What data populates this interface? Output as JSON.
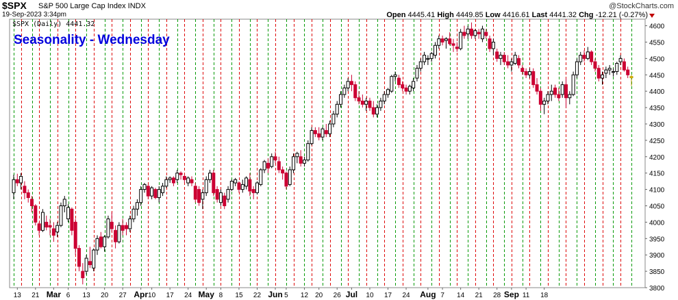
{
  "header": {
    "symbol": "$SPX",
    "company": "S&P 500 Large Cap Index INDX",
    "datetime": "19-Sep-2023 3:34pm",
    "brand": "@StockCharts.com",
    "open_label": "Open",
    "open": "4445.41",
    "high_label": "High",
    "high": "4449.85",
    "low_label": "Low",
    "low": "4416.61",
    "last_label": "Last",
    "last": "4441.32",
    "chg_label": "Chg",
    "chg": "-12.21 (-0.27%)"
  },
  "colors": {
    "up": "#000000",
    "down": "#cc0033",
    "today": "#ffd400",
    "green_line": "#009900",
    "red_line": "#dd0000",
    "title": "#0000dd"
  },
  "chart_data": {
    "type": "candlestick",
    "title": "Seasonality - Wednesday",
    "legend": "$SPX (Daily) 4441.32",
    "ylim": [
      3800,
      4620
    ],
    "y_ticks": [
      3800,
      3850,
      3900,
      3950,
      4000,
      4050,
      4100,
      4150,
      4200,
      4250,
      4300,
      4350,
      4400,
      4450,
      4500,
      4550,
      4600
    ],
    "grid": "vertical weekly dashed lines: green = Monday, red = Wednesday",
    "x_ticks": [
      {
        "i": 1,
        "label": "13"
      },
      {
        "i": 6,
        "label": "21"
      },
      {
        "i": 11,
        "label": "Mar",
        "bold": true
      },
      {
        "i": 15,
        "label": "6"
      },
      {
        "i": 20,
        "label": "13"
      },
      {
        "i": 25,
        "label": "20"
      },
      {
        "i": 30,
        "label": "27"
      },
      {
        "i": 35,
        "label": "Apr",
        "bold": true
      },
      {
        "i": 38,
        "label": "10"
      },
      {
        "i": 43,
        "label": "17"
      },
      {
        "i": 48,
        "label": "24"
      },
      {
        "i": 53,
        "label": "May",
        "bold": true
      },
      {
        "i": 57,
        "label": "8"
      },
      {
        "i": 62,
        "label": "15"
      },
      {
        "i": 67,
        "label": "22"
      },
      {
        "i": 72,
        "label": "Jun",
        "bold": true
      },
      {
        "i": 75,
        "label": "5"
      },
      {
        "i": 80,
        "label": "12"
      },
      {
        "i": 84,
        "label": "20"
      },
      {
        "i": 89,
        "label": "26"
      },
      {
        "i": 93,
        "label": "Jul",
        "bold": true
      },
      {
        "i": 98,
        "label": "10"
      },
      {
        "i": 103,
        "label": "17"
      },
      {
        "i": 108,
        "label": "24"
      },
      {
        "i": 114,
        "label": "Aug",
        "bold": true
      },
      {
        "i": 118,
        "label": "7"
      },
      {
        "i": 123,
        "label": "14"
      },
      {
        "i": 128,
        "label": "21"
      },
      {
        "i": 133,
        "label": "28"
      },
      {
        "i": 137,
        "label": "Sep",
        "bold": true
      },
      {
        "i": 141,
        "label": "11"
      },
      {
        "i": 146,
        "label": "18"
      }
    ],
    "candles": [
      [
        4090,
        4145,
        4070,
        4130
      ],
      [
        4130,
        4148,
        4110,
        4120
      ],
      [
        4120,
        4150,
        4100,
        4140
      ],
      [
        4110,
        4125,
        4070,
        4090
      ],
      [
        4090,
        4100,
        4060,
        4075
      ],
      [
        4070,
        4080,
        4030,
        4050
      ],
      [
        4050,
        4055,
        3990,
        4000
      ],
      [
        3995,
        4000,
        3960,
        3975
      ],
      [
        3975,
        4040,
        3970,
        4030
      ],
      [
        4000,
        4020,
        3975,
        3985
      ],
      [
        3990,
        4010,
        3960,
        3985
      ],
      [
        3980,
        4000,
        3940,
        3960
      ],
      [
        3970,
        4000,
        3955,
        3990
      ],
      [
        3990,
        4060,
        3985,
        4050
      ],
      [
        4050,
        4080,
        4030,
        4070
      ],
      [
        4010,
        4055,
        4000,
        4045
      ],
      [
        4040,
        4045,
        3960,
        3975
      ],
      [
        4000,
        4010,
        3900,
        3920
      ],
      [
        3920,
        3930,
        3850,
        3865
      ],
      [
        3850,
        3875,
        3810,
        3830
      ],
      [
        3850,
        3900,
        3840,
        3890
      ],
      [
        3880,
        3925,
        3860,
        3870
      ],
      [
        3860,
        3920,
        3850,
        3915
      ],
      [
        3915,
        3960,
        3900,
        3950
      ],
      [
        3955,
        3970,
        3920,
        3925
      ],
      [
        3925,
        3960,
        3910,
        3955
      ],
      [
        3955,
        4020,
        3950,
        4010
      ],
      [
        4000,
        4030,
        3970,
        3980
      ],
      [
        3975,
        3990,
        3920,
        3940
      ],
      [
        3940,
        4000,
        3935,
        3990
      ],
      [
        3990,
        4010,
        3960,
        3975
      ],
      [
        3990,
        4000,
        3960,
        3980
      ],
      [
        3980,
        4020,
        3970,
        4010
      ],
      [
        4010,
        4050,
        4000,
        4040
      ],
      [
        4040,
        4070,
        4020,
        4060
      ],
      [
        4060,
        4110,
        4050,
        4100
      ],
      [
        4100,
        4120,
        4090,
        4115
      ],
      [
        4110,
        4115,
        4070,
        4080
      ],
      [
        4080,
        4110,
        4070,
        4105
      ],
      [
        4100,
        4105,
        4070,
        4075
      ],
      [
        4075,
        4110,
        4060,
        4100
      ],
      [
        4090,
        4120,
        4080,
        4110
      ],
      [
        4110,
        4140,
        4105,
        4130
      ],
      [
        4130,
        4140,
        4120,
        4135
      ],
      [
        4135,
        4140,
        4110,
        4120
      ],
      [
        4130,
        4160,
        4120,
        4150
      ],
      [
        4150,
        4155,
        4130,
        4145
      ],
      [
        4140,
        4145,
        4120,
        4130
      ],
      [
        4120,
        4140,
        4110,
        4135
      ],
      [
        4130,
        4140,
        4110,
        4120
      ],
      [
        4110,
        4120,
        4060,
        4070
      ],
      [
        4100,
        4110,
        4050,
        4060
      ],
      [
        4070,
        4100,
        4040,
        4090
      ],
      [
        4090,
        4140,
        4080,
        4130
      ],
      [
        4130,
        4160,
        4120,
        4150
      ],
      [
        4150,
        4160,
        4080,
        4090
      ],
      [
        4100,
        4110,
        4060,
        4070
      ],
      [
        4060,
        4100,
        4050,
        4090
      ],
      [
        4080,
        4090,
        4040,
        4050
      ],
      [
        4070,
        4110,
        4060,
        4100
      ],
      [
        4100,
        4130,
        4095,
        4125
      ],
      [
        4120,
        4135,
        4110,
        4130
      ],
      [
        4120,
        4125,
        4090,
        4100
      ],
      [
        4100,
        4130,
        4090,
        4115
      ],
      [
        4110,
        4140,
        4100,
        4135
      ],
      [
        4130,
        4150,
        4080,
        4095
      ],
      [
        4100,
        4110,
        4070,
        4090
      ],
      [
        4090,
        4125,
        4085,
        4120
      ],
      [
        4115,
        4165,
        4110,
        4160
      ],
      [
        4160,
        4190,
        4150,
        4185
      ],
      [
        4180,
        4195,
        4150,
        4165
      ],
      [
        4170,
        4210,
        4165,
        4200
      ],
      [
        4200,
        4215,
        4180,
        4190
      ],
      [
        4185,
        4200,
        4150,
        4160
      ],
      [
        4160,
        4170,
        4130,
        4150
      ],
      [
        4150,
        4155,
        4100,
        4110
      ],
      [
        4115,
        4170,
        4110,
        4160
      ],
      [
        4160,
        4210,
        4150,
        4200
      ],
      [
        4200,
        4215,
        4180,
        4210
      ],
      [
        4200,
        4220,
        4170,
        4180
      ],
      [
        4180,
        4200,
        4170,
        4190
      ],
      [
        4190,
        4250,
        4185,
        4240
      ],
      [
        4240,
        4290,
        4235,
        4280
      ],
      [
        4280,
        4290,
        4260,
        4270
      ],
      [
        4270,
        4290,
        4250,
        4260
      ],
      [
        4260,
        4290,
        4250,
        4285
      ],
      [
        4280,
        4300,
        4260,
        4270
      ],
      [
        4270,
        4310,
        4260,
        4300
      ],
      [
        4300,
        4340,
        4290,
        4330
      ],
      [
        4330,
        4370,
        4320,
        4360
      ],
      [
        4360,
        4400,
        4350,
        4390
      ],
      [
        4390,
        4420,
        4380,
        4410
      ],
      [
        4410,
        4440,
        4400,
        4430
      ],
      [
        4430,
        4450,
        4400,
        4420
      ],
      [
        4420,
        4430,
        4370,
        4380
      ],
      [
        4380,
        4400,
        4360,
        4370
      ],
      [
        4370,
        4390,
        4350,
        4360
      ],
      [
        4360,
        4380,
        4340,
        4370
      ],
      [
        4370,
        4380,
        4340,
        4350
      ],
      [
        4350,
        4370,
        4320,
        4330
      ],
      [
        4330,
        4360,
        4320,
        4350
      ],
      [
        4350,
        4380,
        4340,
        4370
      ],
      [
        4370,
        4400,
        4360,
        4390
      ],
      [
        4390,
        4410,
        4380,
        4405
      ],
      [
        4400,
        4450,
        4395,
        4445
      ],
      [
        4445,
        4460,
        4430,
        4450
      ],
      [
        4440,
        4450,
        4410,
        4420
      ],
      [
        4420,
        4430,
        4400,
        4410
      ],
      [
        4410,
        4420,
        4390,
        4400
      ],
      [
        4400,
        4420,
        4390,
        4415
      ],
      [
        4410,
        4440,
        4400,
        4430
      ],
      [
        4440,
        4480,
        4430,
        4470
      ],
      [
        4470,
        4500,
        4460,
        4490
      ],
      [
        4490,
        4520,
        4480,
        4510
      ],
      [
        4500,
        4510,
        4480,
        4500
      ],
      [
        4500,
        4520,
        4490,
        4515
      ],
      [
        4510,
        4550,
        4500,
        4540
      ],
      [
        4540,
        4570,
        4530,
        4560
      ],
      [
        4560,
        4570,
        4540,
        4550
      ],
      [
        4555,
        4565,
        4530,
        4560
      ],
      [
        4560,
        4580,
        4540,
        4545
      ],
      [
        4545,
        4560,
        4520,
        4540
      ],
      [
        4535,
        4550,
        4520,
        4530
      ],
      [
        4530,
        4590,
        4525,
        4580
      ],
      [
        4580,
        4600,
        4560,
        4570
      ],
      [
        4575,
        4600,
        4560,
        4590
      ],
      [
        4590,
        4610,
        4560,
        4570
      ],
      [
        4570,
        4590,
        4560,
        4585
      ],
      [
        4580,
        4590,
        4560,
        4575
      ],
      [
        4560,
        4600,
        4550,
        4590
      ],
      [
        4580,
        4590,
        4560,
        4570
      ],
      [
        4560,
        4570,
        4520,
        4530
      ],
      [
        4530,
        4560,
        4510,
        4550
      ],
      [
        4520,
        4530,
        4490,
        4500
      ],
      [
        4500,
        4520,
        4480,
        4510
      ],
      [
        4510,
        4520,
        4480,
        4490
      ],
      [
        4490,
        4510,
        4470,
        4480
      ],
      [
        4480,
        4500,
        4460,
        4490
      ],
      [
        4485,
        4520,
        4480,
        4510
      ],
      [
        4500,
        4510,
        4470,
        4480
      ],
      [
        4470,
        4480,
        4450,
        4460
      ],
      [
        4460,
        4470,
        4440,
        4450
      ],
      [
        4450,
        4470,
        4440,
        4460
      ],
      [
        4460,
        4470,
        4410,
        4420
      ],
      [
        4420,
        4440,
        4390,
        4400
      ],
      [
        4400,
        4410,
        4340,
        4360
      ],
      [
        4360,
        4380,
        4330,
        4370
      ],
      [
        4370,
        4400,
        4360,
        4390
      ],
      [
        4390,
        4420,
        4370,
        4400
      ],
      [
        4410,
        4420,
        4380,
        4390
      ],
      [
        4390,
        4410,
        4370,
        4380
      ],
      [
        4390,
        4430,
        4380,
        4420
      ],
      [
        4420,
        4440,
        4350,
        4380
      ],
      [
        4380,
        4400,
        4360,
        4390
      ],
      [
        4390,
        4460,
        4385,
        4450
      ],
      [
        4450,
        4500,
        4440,
        4490
      ],
      [
        4490,
        4520,
        4480,
        4510
      ],
      [
        4510,
        4525,
        4490,
        4500
      ],
      [
        4500,
        4535,
        4495,
        4520
      ],
      [
        4520,
        4525,
        4480,
        4490
      ],
      [
        4490,
        4500,
        4460,
        4470
      ],
      [
        4470,
        4480,
        4430,
        4440
      ],
      [
        4440,
        4460,
        4420,
        4450
      ],
      [
        4455,
        4475,
        4440,
        4465
      ],
      [
        4465,
        4480,
        4450,
        4470
      ],
      [
        4460,
        4470,
        4445,
        4460
      ],
      [
        4460,
        4490,
        4450,
        4485
      ],
      [
        4490,
        4510,
        4480,
        4500
      ],
      [
        4490,
        4500,
        4460,
        4465
      ],
      [
        4465,
        4475,
        4440,
        4450
      ],
      [
        4445,
        4450,
        4416,
        4441
      ]
    ]
  }
}
